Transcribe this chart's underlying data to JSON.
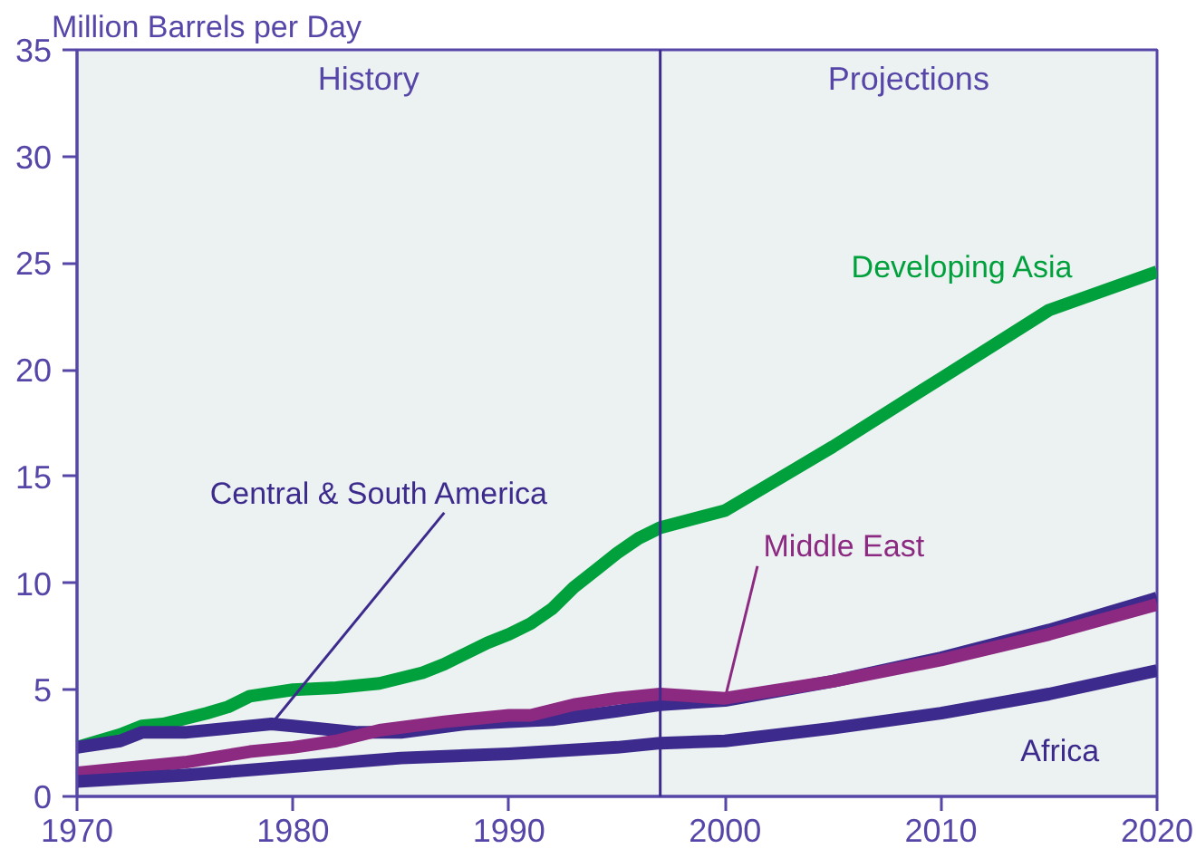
{
  "chart_data": {
    "type": "line",
    "ylabel": "Million Barrels per Day",
    "xlim": [
      1970,
      2020
    ],
    "xticks": [
      1970,
      1980,
      1990,
      2000,
      2010,
      2020
    ],
    "ylim": [
      0,
      35
    ],
    "yticks": [
      0,
      5,
      10,
      15,
      20,
      25,
      30,
      35
    ],
    "grid": false,
    "marker": "none",
    "line_style": "solid",
    "ref_lines": [
      {
        "axis": "x",
        "value": 1997,
        "color": "#3c2a8c"
      }
    ],
    "annotations": [
      "History",
      "Projections"
    ],
    "series": [
      {
        "name": "Developing Asia",
        "color": "#00a03c",
        "x": [
          1970,
          1972,
          1973,
          1974,
          1976,
          1977,
          1978,
          1980,
          1982,
          1984,
          1986,
          1987,
          1989,
          1990,
          1991,
          1992,
          1993,
          1994,
          1995,
          1996,
          1997,
          2000,
          2005,
          2010,
          2015,
          2020
        ],
        "values": [
          2.3,
          2.9,
          3.3,
          3.4,
          3.9,
          4.2,
          4.7,
          5.0,
          5.1,
          5.3,
          5.8,
          6.2,
          7.2,
          7.6,
          8.1,
          8.8,
          9.8,
          10.6,
          11.4,
          12.1,
          12.6,
          13.4,
          16.4,
          19.6,
          22.8,
          24.6
        ]
      },
      {
        "name": "Central & South America",
        "color": "#3c2a8c",
        "x": [
          1970,
          1972,
          1973,
          1975,
          1977,
          1979,
          1980,
          1983,
          1985,
          1988,
          1990,
          1992,
          1995,
          1997,
          2000,
          2005,
          2010,
          2015,
          2020
        ],
        "values": [
          2.3,
          2.6,
          3.0,
          3.0,
          3.2,
          3.4,
          3.3,
          3.0,
          3.0,
          3.4,
          3.5,
          3.6,
          4.0,
          4.3,
          4.5,
          5.4,
          6.5,
          7.8,
          9.3
        ]
      },
      {
        "name": "Middle East",
        "color": "#8c2a82",
        "x": [
          1970,
          1975,
          1978,
          1980,
          1982,
          1984,
          1987,
          1990,
          1991,
          1993,
          1995,
          1997,
          2000,
          2005,
          2010,
          2015,
          2020
        ],
        "values": [
          1.1,
          1.6,
          2.1,
          2.3,
          2.6,
          3.1,
          3.5,
          3.8,
          3.8,
          4.3,
          4.6,
          4.8,
          4.6,
          5.4,
          6.4,
          7.6,
          9.0
        ]
      },
      {
        "name": "Africa",
        "color": "#3c2a8c",
        "x": [
          1970,
          1975,
          1980,
          1985,
          1990,
          1995,
          1997,
          2000,
          2005,
          2010,
          2015,
          2020
        ],
        "values": [
          0.7,
          1.0,
          1.4,
          1.8,
          2.0,
          2.3,
          2.5,
          2.6,
          3.2,
          3.9,
          4.8,
          5.9
        ]
      }
    ]
  }
}
